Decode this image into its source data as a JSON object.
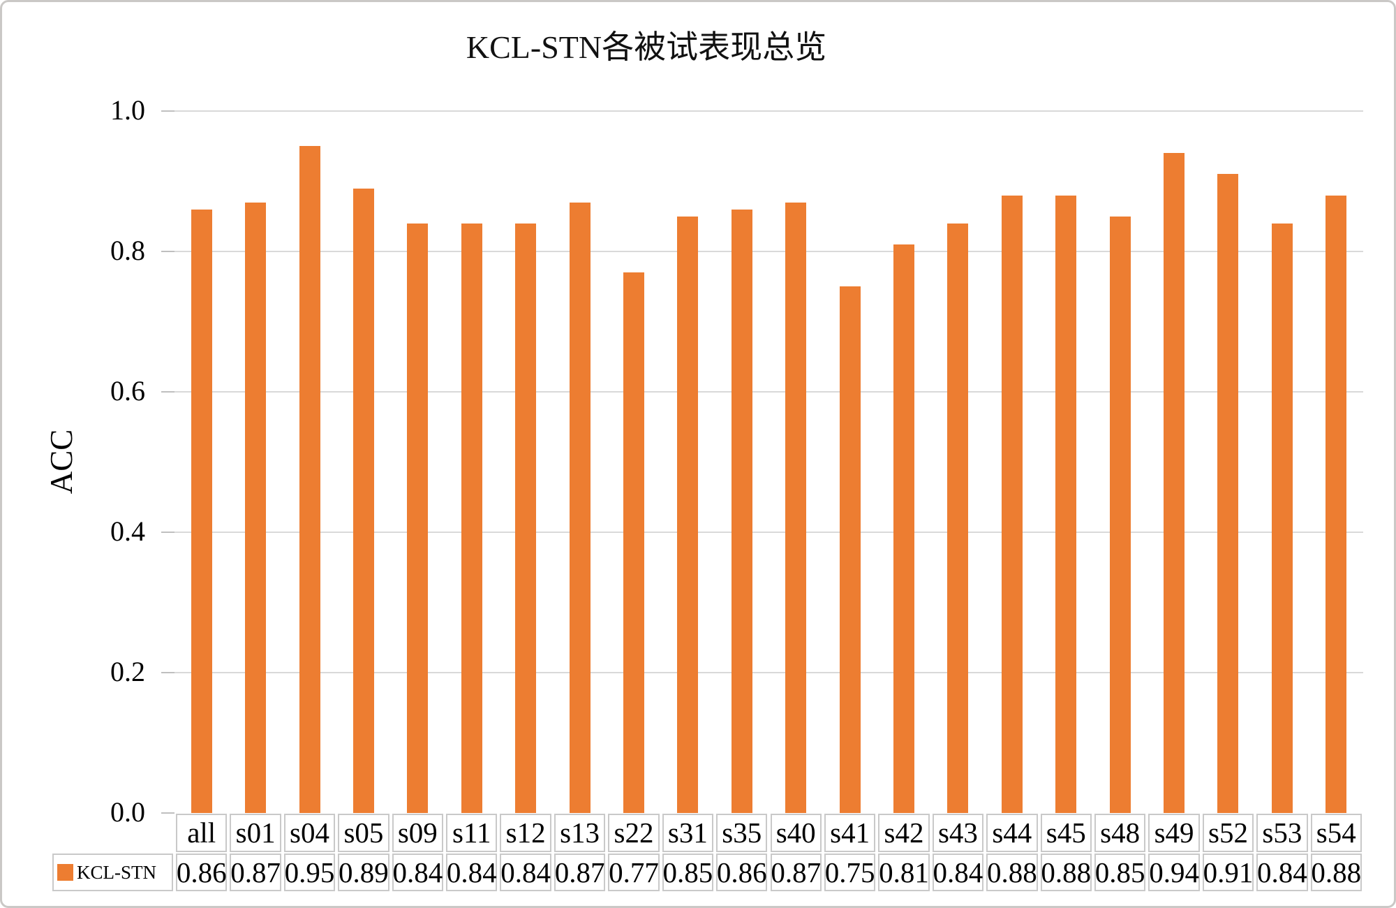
{
  "frame": {
    "background": "#ffffff",
    "border_color": "#cac8c6"
  },
  "chart_data": {
    "type": "bar",
    "title": "KCL-STN各被试表现总览",
    "xlabel": "",
    "ylabel": "ACC",
    "categories": [
      "all",
      "s01",
      "s04",
      "s05",
      "s09",
      "s11",
      "s12",
      "s13",
      "s22",
      "s31",
      "s35",
      "s40",
      "s41",
      "s42",
      "s43",
      "s44",
      "s45",
      "s48",
      "s49",
      "s52",
      "s53",
      "s54"
    ],
    "series": [
      {
        "name": "KCL-STN",
        "values": [
          0.86,
          0.87,
          0.95,
          0.89,
          0.84,
          0.84,
          0.84,
          0.87,
          0.77,
          0.85,
          0.86,
          0.87,
          0.75,
          0.81,
          0.84,
          0.88,
          0.88,
          0.85,
          0.94,
          0.91,
          0.84,
          0.88
        ]
      }
    ],
    "value_labels": [
      "0.86",
      "0.87",
      "0.95",
      "0.89",
      "0.84",
      "0.84",
      "0.84",
      "0.87",
      "0.77",
      "0.85",
      "0.86",
      "0.87",
      "0.75",
      "0.81",
      "0.84",
      "0.88",
      "0.88",
      "0.85",
      "0.94",
      "0.91",
      "0.84",
      "0.88"
    ],
    "ylim": [
      0.0,
      1.0
    ],
    "ytick_labels": [
      "1.0",
      "0.8",
      "0.6",
      "0.4",
      "0.2",
      "0.0"
    ],
    "ytick_values": [
      1.0,
      0.8,
      0.6,
      0.4,
      0.2,
      0.0
    ],
    "grid": true,
    "legend_position": "bottom-data-table",
    "bar_color": "#ED7D31",
    "gridline_color": "#d9d9d9",
    "tick_color": "#bfbfbf",
    "table_border_color": "#c9c9c9"
  }
}
